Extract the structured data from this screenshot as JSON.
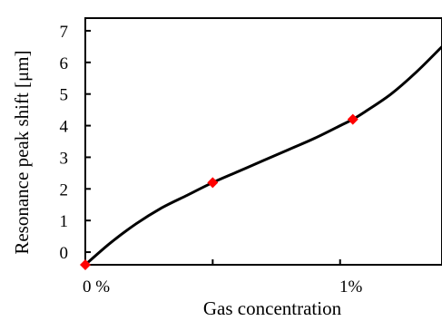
{
  "chart_data": {
    "type": "line",
    "title": "",
    "xlabel": "Gas concentration",
    "ylabel": "Resonance peak shift [μm]",
    "xlim": [
      0,
      1.4
    ],
    "ylim": [
      -0.4,
      7.4
    ],
    "grid": false,
    "x_ticks": [
      {
        "value": 0,
        "label": "0 %"
      },
      {
        "value": 0.5,
        "label": ""
      },
      {
        "value": 1.0,
        "label": "1%"
      }
    ],
    "y_ticks": [
      {
        "value": 0,
        "label": "0"
      },
      {
        "value": 1,
        "label": "1"
      },
      {
        "value": 2,
        "label": "2"
      },
      {
        "value": 3,
        "label": "3"
      },
      {
        "value": 4,
        "label": "4"
      },
      {
        "value": 5,
        "label": "5"
      },
      {
        "value": 6,
        "label": "6"
      },
      {
        "value": 7,
        "label": "7"
      }
    ],
    "series": [
      {
        "line": [
          {
            "x": 0.0,
            "y": -0.4
          },
          {
            "x": 0.1,
            "y": 0.3
          },
          {
            "x": 0.2,
            "y": 0.9
          },
          {
            "x": 0.3,
            "y": 1.4
          },
          {
            "x": 0.4,
            "y": 1.8
          },
          {
            "x": 0.5,
            "y": 2.2
          },
          {
            "x": 0.6,
            "y": 2.55
          },
          {
            "x": 0.7,
            "y": 2.9
          },
          {
            "x": 0.8,
            "y": 3.25
          },
          {
            "x": 0.9,
            "y": 3.6
          },
          {
            "x": 1.0,
            "y": 4.0
          },
          {
            "x": 1.05,
            "y": 4.2
          },
          {
            "x": 1.1,
            "y": 4.45
          },
          {
            "x": 1.2,
            "y": 5.0
          },
          {
            "x": 1.3,
            "y": 5.7
          },
          {
            "x": 1.4,
            "y": 6.5
          }
        ],
        "markers": [
          {
            "x": 0.0,
            "y": -0.4
          },
          {
            "x": 0.5,
            "y": 2.2
          },
          {
            "x": 1.05,
            "y": 4.2
          }
        ]
      }
    ],
    "colors": {
      "line": "#000000",
      "marker": "#ff0000",
      "axis": "#000000"
    }
  }
}
